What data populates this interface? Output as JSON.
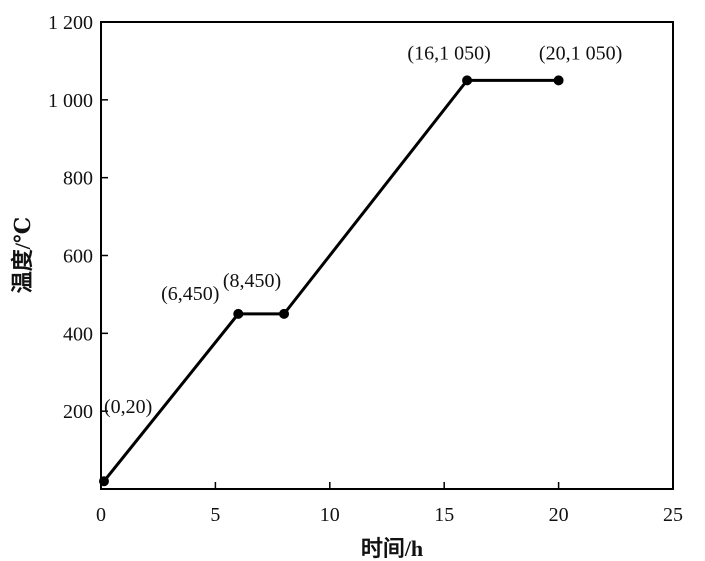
{
  "chart_data": {
    "type": "line",
    "xlabel": "时间/h",
    "ylabel": "温度/℃",
    "xlim": [
      0,
      25
    ],
    "ylim": [
      0,
      1200
    ],
    "xticks": [
      0,
      5,
      10,
      15,
      20,
      25
    ],
    "yticks": [
      200,
      400,
      600,
      800,
      1000,
      1200
    ],
    "xtick_labels": [
      "0",
      "5",
      "10",
      "15",
      "20",
      "25"
    ],
    "ytick_labels": [
      "200",
      "400",
      "600",
      "800",
      "1 000",
      "1 200"
    ],
    "grid": false,
    "series": [
      {
        "x": [
          0,
          6,
          8,
          16,
          20
        ],
        "y": [
          20,
          450,
          450,
          1050,
          1050
        ],
        "labels": [
          "(0,20)",
          "(6,450)",
          "(8,450)",
          "(16,1 050)",
          "(20,1 050)"
        ]
      }
    ],
    "colors": {
      "line": "#000000",
      "marker": "#000000",
      "text": "#111111"
    }
  }
}
